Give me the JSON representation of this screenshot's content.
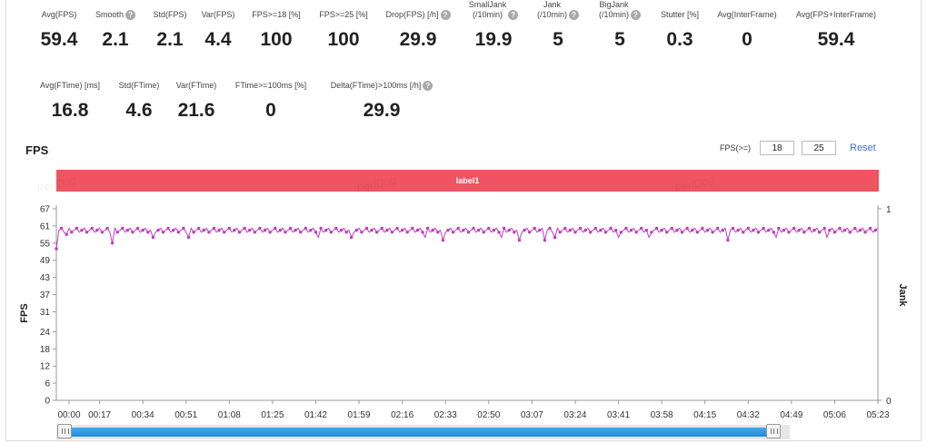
{
  "metrics_row1": [
    {
      "label": "Avg(FPS)",
      "value": "59.4",
      "help": false
    },
    {
      "label": "Smooth",
      "value": "2.1",
      "help": true
    },
    {
      "label": "Std(FPS)",
      "value": "2.1",
      "help": false
    },
    {
      "label": "Var(FPS)",
      "value": "4.4",
      "help": false
    },
    {
      "label": "FPS>=18 [%]",
      "value": "100",
      "help": false
    },
    {
      "label": "FPS>=25 [%]",
      "value": "100",
      "help": false
    },
    {
      "label": "Drop(FPS) [/h]",
      "value": "29.9",
      "help": true
    },
    {
      "label": "SmallJank\n(/10min)",
      "value": "19.9",
      "help": true
    },
    {
      "label": "Jank\n(/10min)",
      "value": "5",
      "help": true
    },
    {
      "label": "BigJank\n(/10min)",
      "value": "5",
      "help": true
    },
    {
      "label": "Stutter [%]",
      "value": "0.3",
      "help": false
    },
    {
      "label": "Avg(InterFrame)",
      "value": "0",
      "help": false
    },
    {
      "label": "Avg(FPS+InterFrame)",
      "value": "59.4",
      "help": false
    }
  ],
  "metrics_row2": [
    {
      "label": "Avg(FTime) [ms]",
      "value": "16.8",
      "help": false
    },
    {
      "label": "Std(FTime)",
      "value": "4.6",
      "help": false
    },
    {
      "label": "Var(FTime)",
      "value": "21.6",
      "help": false
    },
    {
      "label": "FTime>=100ms [%]",
      "value": "0",
      "help": false
    },
    {
      "label": "Delta(FTime)>100ms [/h]",
      "value": "29.9",
      "help": true
    }
  ],
  "help_glyph": "?",
  "chart_section": {
    "title": "FPS",
    "threshold_label": "FPS(>=)",
    "threshold_1": "18",
    "threshold_2": "25",
    "reset_label": "Reset",
    "label_bar": "label1",
    "watermark": "PerfDog"
  },
  "chart_data": {
    "type": "line",
    "title": "",
    "ylabel": "FPS",
    "y2label": "Jank",
    "ylim": [
      0,
      67
    ],
    "y_ticks": [
      0,
      6,
      12,
      18,
      24,
      31,
      37,
      43,
      49,
      55,
      61,
      67
    ],
    "y2_ticks": [
      "0",
      "1"
    ],
    "x_ticks": [
      "00:00",
      "00:17",
      "00:34",
      "00:51",
      "01:08",
      "01:25",
      "01:42",
      "01:59",
      "02:16",
      "02:33",
      "02:50",
      "03:07",
      "03:24",
      "03:41",
      "03:58",
      "04:15",
      "04:32",
      "04:49",
      "05:06",
      "05:23"
    ],
    "x_range_seconds": [
      0,
      323
    ],
    "series": [
      {
        "name": "",
        "color": "#c03cc0",
        "baseline": 59.5,
        "dips": [
          {
            "t": 0,
            "value": 53
          },
          {
            "t": 4,
            "value": 58
          },
          {
            "t": 22,
            "value": 55
          },
          {
            "t": 38,
            "value": 57
          },
          {
            "t": 52,
            "value": 57
          },
          {
            "t": 103,
            "value": 57
          },
          {
            "t": 116,
            "value": 57
          },
          {
            "t": 145,
            "value": 57
          },
          {
            "t": 152,
            "value": 56
          },
          {
            "t": 175,
            "value": 57
          },
          {
            "t": 182,
            "value": 56
          },
          {
            "t": 192,
            "value": 56
          },
          {
            "t": 196,
            "value": 57
          },
          {
            "t": 221,
            "value": 57
          },
          {
            "t": 233,
            "value": 57
          },
          {
            "t": 264,
            "value": 56
          },
          {
            "t": 283,
            "value": 57
          },
          {
            "t": 303,
            "value": 57
          }
        ]
      }
    ]
  },
  "range_slider": {
    "start": 0.0,
    "end": 0.985
  }
}
